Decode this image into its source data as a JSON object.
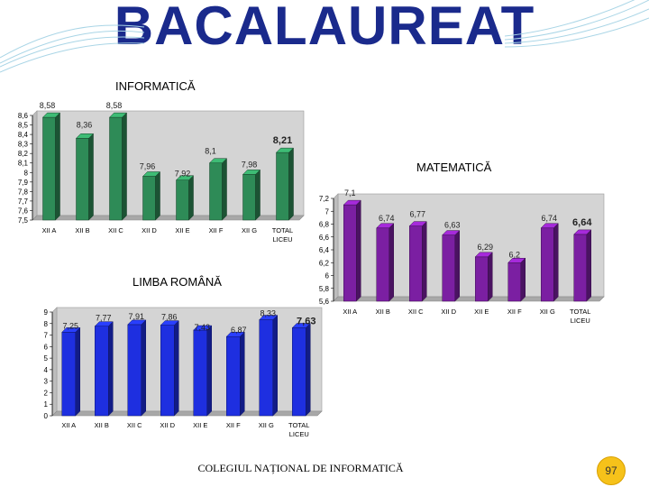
{
  "slide": {
    "title": "BACALAUREAT",
    "footer": "COLEGIUL NAȚIONAL DE INFORMATICĂ",
    "page_number": "97"
  },
  "colors": {
    "informatica_bar": "#2e8b57",
    "matematica_bar": "#7b1fa2",
    "romana_bar": "#1e2fe0",
    "title": "#1a2a8c",
    "badge": "#f6c21a"
  },
  "chart_data": [
    {
      "id": "informatica",
      "type": "bar",
      "title": "INFORMATICĂ",
      "categories": [
        "XII A",
        "XII B",
        "XII C",
        "XII D",
        "XII E",
        "XII F",
        "XII G",
        "TOTAL LICEU"
      ],
      "values": [
        8.58,
        8.36,
        8.58,
        7.96,
        7.92,
        8.1,
        7.98,
        8.21
      ],
      "value_labels": [
        "8,58",
        "8,36",
        "8,58",
        "7,96",
        "7,92",
        "8,1",
        "7,98",
        "8,21"
      ],
      "ylim": [
        7.5,
        8.6
      ],
      "yticks": [
        "7,5",
        "7,6",
        "7,7",
        "7,8",
        "7,9",
        "8",
        "8,1",
        "8,2",
        "8,3",
        "8,4",
        "8,5",
        "8,6"
      ],
      "grid": false,
      "legend": "none"
    },
    {
      "id": "matematica",
      "type": "bar",
      "title": "MATEMATICĂ",
      "categories": [
        "XII A",
        "XII B",
        "XII C",
        "XII D",
        "XII E",
        "XII F",
        "XII G",
        "TOTAL LICEU"
      ],
      "values": [
        7.1,
        6.74,
        6.77,
        6.63,
        6.29,
        6.2,
        6.74,
        6.64
      ],
      "value_labels": [
        "7,1",
        "6,74",
        "6,77",
        "6,63",
        "6,29",
        "6,2",
        "6,74",
        "6,64"
      ],
      "ylim": [
        5.6,
        7.2
      ],
      "yticks": [
        "5,6",
        "5,8",
        "6",
        "6,2",
        "6,4",
        "6,6",
        "6,8",
        "7",
        "7,2"
      ],
      "grid": false,
      "legend": "none"
    },
    {
      "id": "romana",
      "type": "bar",
      "title": "LIMBA ROMÂNĂ",
      "categories": [
        "XII A",
        "XII B",
        "XII C",
        "XII D",
        "XII E",
        "XII F",
        "XII G",
        "TOTAL LICEU"
      ],
      "values": [
        7.25,
        7.77,
        7.91,
        7.86,
        7.43,
        6.87,
        8.33,
        7.63
      ],
      "value_labels": [
        "7,25",
        "7,77",
        "7,91",
        "7,86",
        "7,43",
        "6,87",
        "8,33",
        "7,63"
      ],
      "ylim": [
        0,
        9
      ],
      "yticks": [
        "0",
        "1",
        "2",
        "3",
        "4",
        "5",
        "6",
        "7",
        "8",
        "9"
      ],
      "grid": false,
      "legend": "none"
    }
  ]
}
